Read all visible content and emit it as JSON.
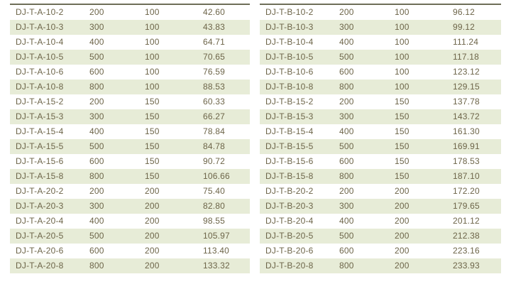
{
  "colors": {
    "background": "#ffffff",
    "stripe": "#e7ecd7",
    "text": "#6d6549",
    "top_border": "#6e6e58"
  },
  "tables": [
    {
      "id": "table-a",
      "rows": [
        [
          "DJ-T-A-10-2",
          "200",
          "100",
          "42.60"
        ],
        [
          "DJ-T-A-10-3",
          "300",
          "100",
          "43.83"
        ],
        [
          "DJ-T-A-10-4",
          "400",
          "100",
          "64.71"
        ],
        [
          "DJ-T-A-10-5",
          "500",
          "100",
          "70.65"
        ],
        [
          "DJ-T-A-10-6",
          "600",
          "100",
          "76.59"
        ],
        [
          "DJ-T-A-10-8",
          "800",
          "100",
          "88.53"
        ],
        [
          "DJ-T-A-15-2",
          "200",
          "150",
          "60.33"
        ],
        [
          "DJ-T-A-15-3",
          "300",
          "150",
          "66.27"
        ],
        [
          "DJ-T-A-15-4",
          "400",
          "150",
          "78.84"
        ],
        [
          "DJ-T-A-15-5",
          "500",
          "150",
          "84.78"
        ],
        [
          "DJ-T-A-15-6",
          "600",
          "150",
          "90.72"
        ],
        [
          "DJ-T-A-15-8",
          "800",
          "150",
          "106.66"
        ],
        [
          "DJ-T-A-20-2",
          "200",
          "200",
          "75.40"
        ],
        [
          "DJ-T-A-20-3",
          "300",
          "200",
          "82.80"
        ],
        [
          "DJ-T-A-20-4",
          "400",
          "200",
          "98.55"
        ],
        [
          "DJ-T-A-20-5",
          "500",
          "200",
          "105.97"
        ],
        [
          "DJ-T-A-20-6",
          "600",
          "200",
          "113.40"
        ],
        [
          "DJ-T-A-20-8",
          "800",
          "200",
          "133.32"
        ]
      ]
    },
    {
      "id": "table-b",
      "rows": [
        [
          "DJ-T-B-10-2",
          "200",
          "100",
          "96.12"
        ],
        [
          "DJ-T-B-10-3",
          "300",
          "100",
          "99.12"
        ],
        [
          "DJ-T-B-10-4",
          "400",
          "100",
          "111.24"
        ],
        [
          "DJ-T-B-10-5",
          "500",
          "100",
          "117.18"
        ],
        [
          "DJ-T-B-10-6",
          "600",
          "100",
          "123.12"
        ],
        [
          "DJ-T-B-10-8",
          "800",
          "100",
          "129.15"
        ],
        [
          "DJ-T-B-15-2",
          "200",
          "150",
          "137.78"
        ],
        [
          "DJ-T-B-15-3",
          "300",
          "150",
          "143.72"
        ],
        [
          "DJ-T-B-15-4",
          "400",
          "150",
          "161.30"
        ],
        [
          "DJ-T-B-15-5",
          "500",
          "150",
          "169.91"
        ],
        [
          "DJ-T-B-15-6",
          "600",
          "150",
          "178.53"
        ],
        [
          "DJ-T-B-15-8",
          "800",
          "150",
          "187.10"
        ],
        [
          "DJ-T-B-20-2",
          "200",
          "200",
          "172.20"
        ],
        [
          "DJ-T-B-20-3",
          "300",
          "200",
          "179.65"
        ],
        [
          "DJ-T-B-20-4",
          "400",
          "200",
          "201.12"
        ],
        [
          "DJ-T-B-20-5",
          "500",
          "200",
          "212.38"
        ],
        [
          "DJ-T-B-20-6",
          "600",
          "200",
          "223.16"
        ],
        [
          "DJ-T-B-20-8",
          "800",
          "200",
          "233.93"
        ]
      ]
    }
  ]
}
